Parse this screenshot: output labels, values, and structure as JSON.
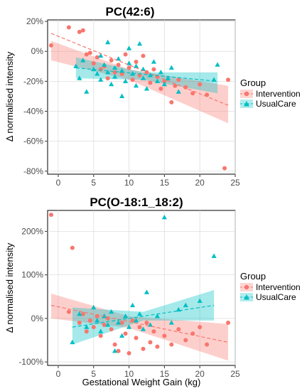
{
  "colors": {
    "intervention": "#F8766D",
    "usualcare": "#00BFC4",
    "band_int": "#F8766D",
    "band_uc": "#00BFC4"
  },
  "legend": {
    "title": "Group",
    "items": [
      "Intervention",
      "UsualCare"
    ]
  },
  "chart_data": [
    {
      "type": "scatter",
      "title": "PC(42:6)",
      "xlabel": "",
      "ylabel": "Δ normalised intensity",
      "xlim": [
        -1.5,
        25
      ],
      "ylim": [
        -82,
        21
      ],
      "xticks": [
        0,
        5,
        10,
        15,
        20,
        25
      ],
      "xtick_labels": [
        "0",
        "5",
        "10",
        "15",
        "20",
        "25"
      ],
      "yticks": [
        20,
        0,
        -20,
        -40,
        -60,
        -80
      ],
      "ytick_labels": [
        "20%",
        "0%",
        "-20%",
        "-40%",
        "-60%",
        "-80%"
      ],
      "grid": true,
      "legend_position": "right",
      "series": [
        {
          "name": "Intervention",
          "marker": "circle",
          "points": [
            [
              -1,
              4
            ],
            [
              1.5,
              16
            ],
            [
              3,
              13
            ],
            [
              3.5,
              14
            ],
            [
              4,
              -2
            ],
            [
              4.5,
              -1
            ],
            [
              5,
              -8
            ],
            [
              5.5,
              -4
            ],
            [
              6,
              -12
            ],
            [
              6.5,
              -10
            ],
            [
              7,
              -18
            ],
            [
              7.5,
              -6
            ],
            [
              8,
              -14
            ],
            [
              8.5,
              -9
            ],
            [
              9,
              -15
            ],
            [
              9.5,
              -2
            ],
            [
              10,
              -11
            ],
            [
              10.5,
              -19
            ],
            [
              11,
              -7
            ],
            [
              11.5,
              -16
            ],
            [
              12,
              -3
            ],
            [
              12.5,
              -14
            ],
            [
              13,
              -21
            ],
            [
              13.5,
              -12
            ],
            [
              14,
              -17
            ],
            [
              14.5,
              -25
            ],
            [
              15,
              -20
            ],
            [
              16,
              -34
            ],
            [
              16.5,
              -23
            ],
            [
              17,
              -19
            ],
            [
              18,
              -24
            ],
            [
              19,
              -28
            ],
            [
              20,
              -22
            ],
            [
              21,
              -29
            ],
            [
              23.5,
              -78
            ],
            [
              24,
              -19
            ]
          ],
          "trend": [
            [
              -1,
              12
            ],
            [
              24,
              -36
            ]
          ],
          "band": {
            "x": [
              -1,
              10,
              24
            ],
            "lower": [
              -6,
              -19,
              -48
            ],
            "upper": [
              7,
              -12,
              -23
            ]
          }
        },
        {
          "name": "UsualCare",
          "marker": "triangle",
          "points": [
            [
              2.5,
              -10
            ],
            [
              3,
              -18
            ],
            [
              3.5,
              -6
            ],
            [
              4,
              -27
            ],
            [
              5,
              -12
            ],
            [
              5.5,
              -15
            ],
            [
              6,
              -3
            ],
            [
              6,
              -19
            ],
            [
              6.5,
              -9
            ],
            [
              7,
              -14
            ],
            [
              7,
              6
            ],
            [
              7.5,
              -22
            ],
            [
              8,
              -11
            ],
            [
              8,
              -17
            ],
            [
              8.5,
              -5
            ],
            [
              9,
              -30
            ],
            [
              9,
              -13
            ],
            [
              9.5,
              -20
            ],
            [
              10,
              -8
            ],
            [
              10,
              2
            ],
            [
              10.5,
              -15
            ],
            [
              11,
              -23
            ],
            [
              11,
              -10
            ],
            [
              11.5,
              5
            ],
            [
              12,
              -18
            ],
            [
              12,
              -12
            ],
            [
              12.5,
              -25
            ],
            [
              13,
              -16
            ],
            [
              13.5,
              -7
            ],
            [
              14,
              -20
            ],
            [
              14.5,
              -14
            ],
            [
              15,
              -22
            ],
            [
              15.5,
              -18
            ],
            [
              16,
              -11
            ],
            [
              17,
              -27
            ],
            [
              22,
              -19
            ],
            [
              22.5,
              -9
            ]
          ],
          "trend": [
            [
              2.5,
              -11
            ],
            [
              22.5,
              -20
            ]
          ],
          "band": {
            "x": [
              2.5,
              12,
              22.5
            ],
            "lower": [
              -18,
              -19,
              -28
            ],
            "upper": [
              -4,
              -14,
              -14
            ]
          }
        }
      ]
    },
    {
      "type": "scatter",
      "title": "PC(O-18:1_18:2)",
      "xlabel": "Gestational Weight Gain (kg)",
      "ylabel": "Δ normalised intensity",
      "xlim": [
        -1.5,
        25
      ],
      "ylim": [
        -108,
        248
      ],
      "xticks": [
        0,
        5,
        10,
        15,
        20,
        25
      ],
      "xtick_labels": [
        "0",
        "5",
        "10",
        "15",
        "20",
        "25"
      ],
      "yticks": [
        200,
        100,
        0,
        -100
      ],
      "ytick_labels": [
        "200%",
        "100%",
        "0%",
        "-100%"
      ],
      "grid": true,
      "legend_position": "right",
      "series": [
        {
          "name": "Intervention",
          "marker": "circle",
          "points": [
            [
              -1,
              238
            ],
            [
              2,
              162
            ],
            [
              1.5,
              15
            ],
            [
              3,
              -10
            ],
            [
              3.5,
              10
            ],
            [
              4,
              -30
            ],
            [
              4.5,
              -5
            ],
            [
              5,
              -20
            ],
            [
              5.5,
              5
            ],
            [
              6,
              -40
            ],
            [
              6.5,
              -15
            ],
            [
              7,
              0
            ],
            [
              7.5,
              -25
            ],
            [
              8,
              -60
            ],
            [
              8.5,
              -75
            ],
            [
              9,
              -10
            ],
            [
              9.5,
              -35
            ],
            [
              10,
              -80
            ],
            [
              10.5,
              -5
            ],
            [
              11,
              -45
            ],
            [
              11.5,
              -20
            ],
            [
              12,
              -70
            ],
            [
              12.5,
              -10
            ],
            [
              13,
              -55
            ],
            [
              13.5,
              -30
            ],
            [
              14,
              -65
            ],
            [
              15,
              -40
            ],
            [
              16,
              -60
            ],
            [
              17,
              -25
            ],
            [
              18,
              -50
            ],
            [
              19,
              -35
            ],
            [
              20,
              -20
            ],
            [
              21,
              -60
            ],
            [
              24,
              -10
            ]
          ],
          "trend": [
            [
              -1,
              30
            ],
            [
              24,
              -55
            ]
          ],
          "band": {
            "x": [
              -1,
              10,
              24
            ],
            "lower": [
              0,
              -22,
              -97
            ],
            "upper": [
              57,
              5,
              -13
            ]
          }
        },
        {
          "name": "UsualCare",
          "marker": "triangle",
          "points": [
            [
              2,
              -55
            ],
            [
              3,
              10
            ],
            [
              4,
              -20
            ],
            [
              5,
              25
            ],
            [
              5.5,
              -5
            ],
            [
              6,
              -30
            ],
            [
              6.5,
              5
            ],
            [
              7,
              -15
            ],
            [
              7.5,
              15
            ],
            [
              8,
              -75
            ],
            [
              8.5,
              -10
            ],
            [
              9,
              -40
            ],
            [
              9.5,
              5
            ],
            [
              10,
              -20
            ],
            [
              10.5,
              30
            ],
            [
              11,
              -5
            ],
            [
              11.5,
              10
            ],
            [
              12,
              -25
            ],
            [
              12.5,
              60
            ],
            [
              13,
              -15
            ],
            [
              14,
              5
            ],
            [
              15,
              232
            ],
            [
              16,
              -10
            ],
            [
              17,
              20
            ],
            [
              18,
              30
            ],
            [
              20,
              40
            ],
            [
              22,
              143
            ]
          ],
          "trend": [
            [
              2,
              -20
            ],
            [
              22,
              30
            ]
          ],
          "band": {
            "x": [
              2,
              12,
              22
            ],
            "lower": [
              -60,
              -5,
              -5
            ],
            "upper": [
              25,
              15,
              65
            ]
          }
        }
      ]
    }
  ]
}
